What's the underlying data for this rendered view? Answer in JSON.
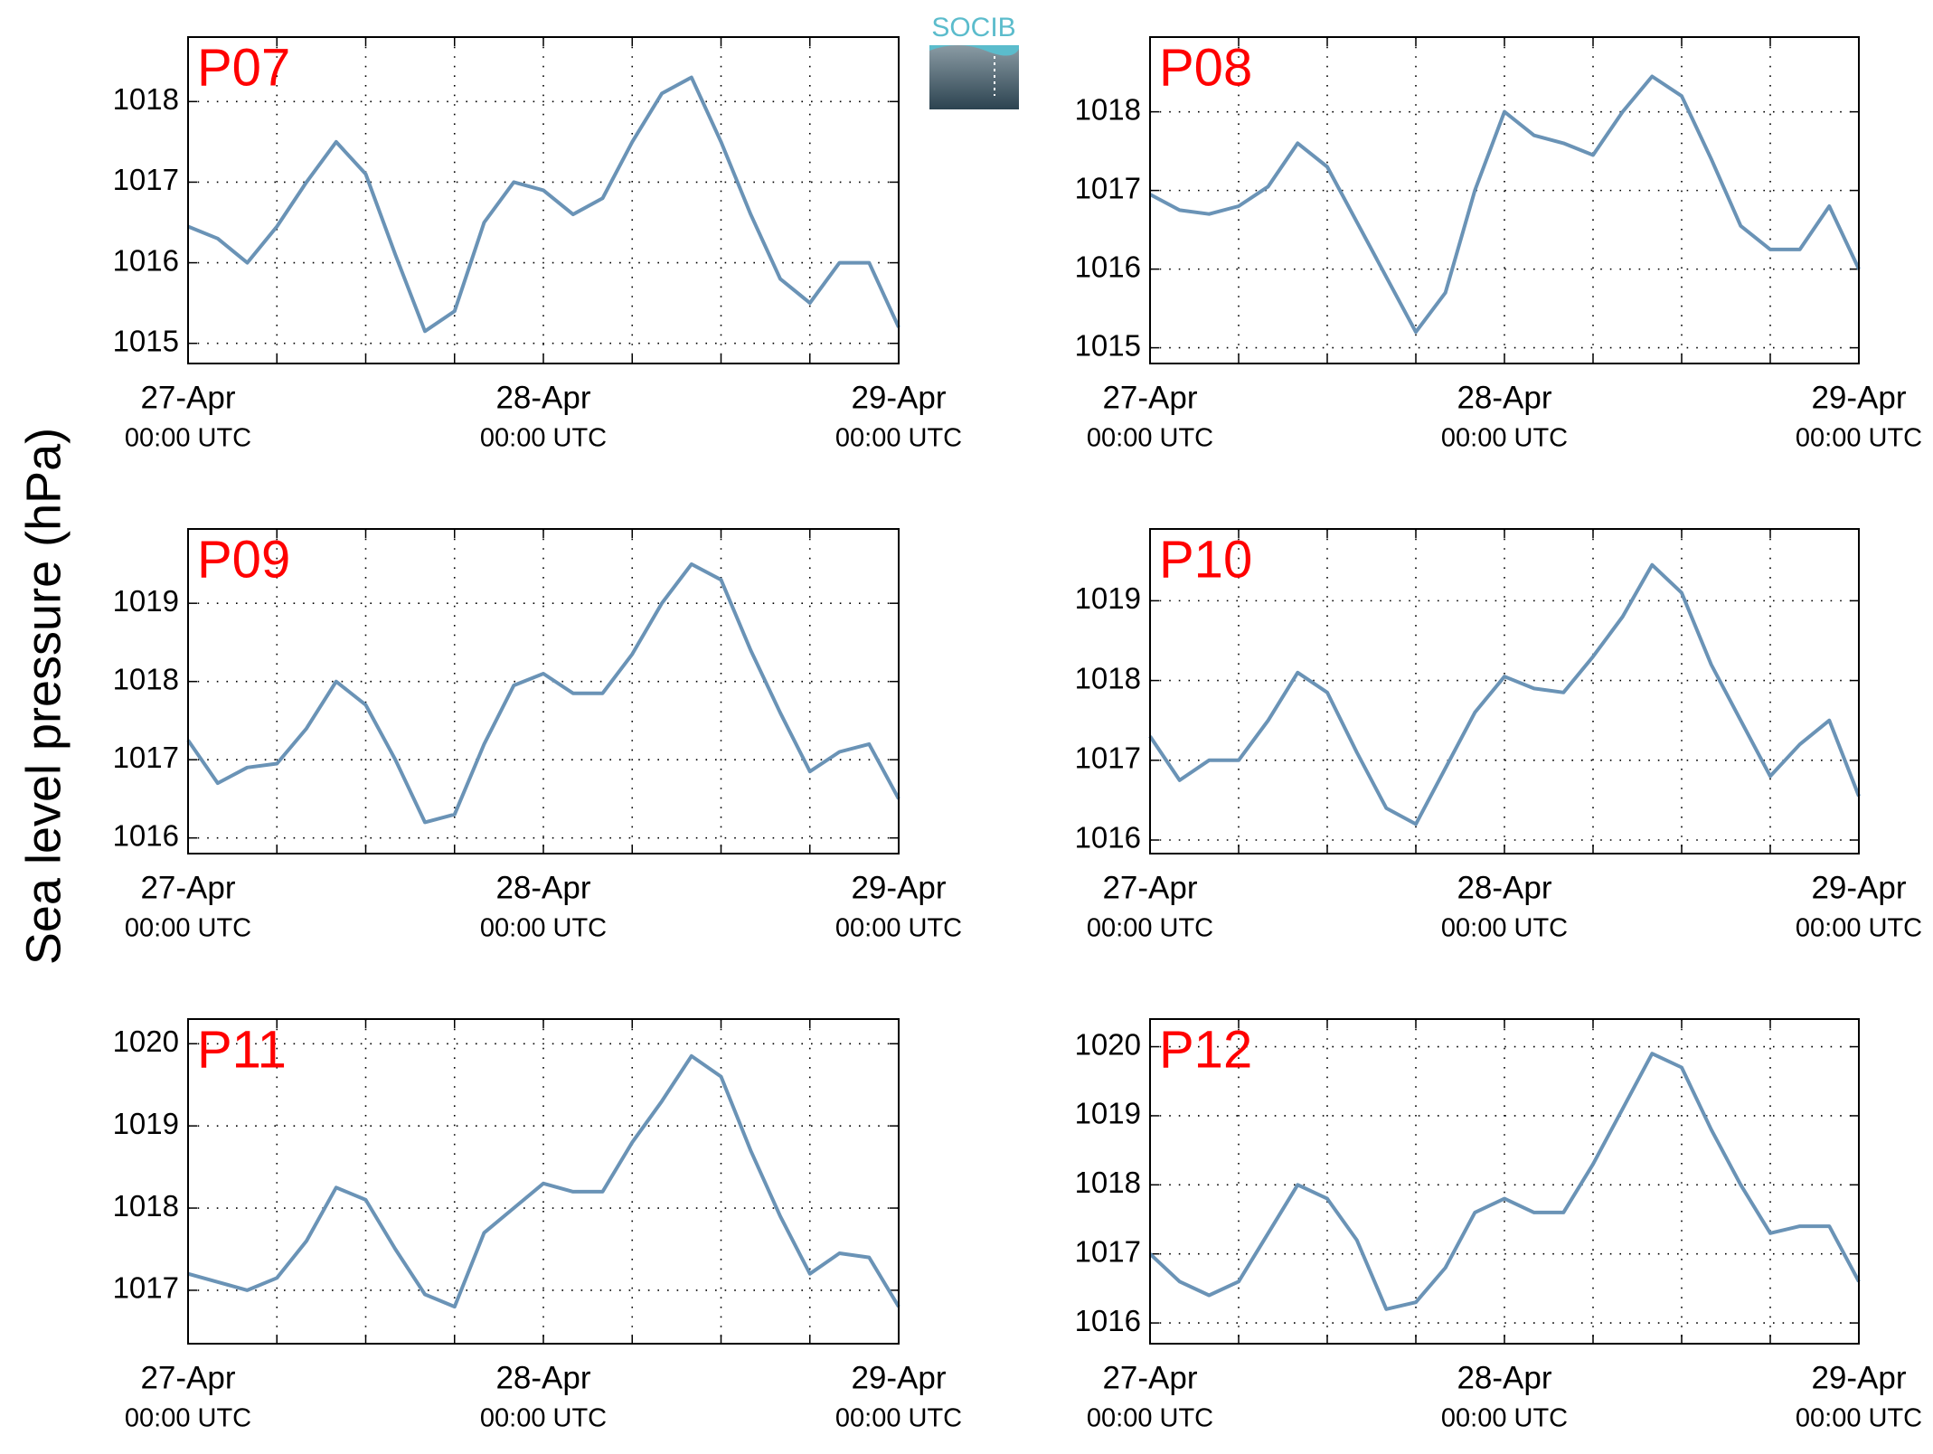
{
  "ylabel": "Sea level pressure (hPa)",
  "logo": "SOCIB",
  "chart_data": [
    {
      "type": "line",
      "title": "P07",
      "color": "#6a93b6",
      "grid": true,
      "x": [
        "27-Apr 00:00",
        "27-Apr 02:00",
        "27-Apr 04:00",
        "27-Apr 06:00",
        "27-Apr 08:00",
        "27-Apr 10:00",
        "27-Apr 12:00",
        "27-Apr 14:00",
        "27-Apr 16:00",
        "27-Apr 18:00",
        "27-Apr 20:00",
        "27-Apr 22:00",
        "28-Apr 00:00",
        "28-Apr 02:00",
        "28-Apr 04:00",
        "28-Apr 06:00",
        "28-Apr 08:00",
        "28-Apr 10:00",
        "28-Apr 12:00",
        "28-Apr 14:00",
        "28-Apr 16:00",
        "28-Apr 18:00",
        "28-Apr 20:00",
        "28-Apr 22:00",
        "29-Apr 00:00"
      ],
      "values": [
        1016.45,
        1016.3,
        1016.0,
        1016.45,
        1017.0,
        1017.5,
        1017.1,
        1016.1,
        1015.15,
        1015.4,
        1016.5,
        1017.0,
        1016.9,
        1016.6,
        1016.8,
        1017.5,
        1018.1,
        1018.3,
        1017.5,
        1016.6,
        1015.8,
        1015.5,
        1016.0,
        1016.0,
        1015.2
      ],
      "xlim": [
        "27-Apr 00:00",
        "29-Apr 00:00"
      ],
      "xticks": [
        {
          "value": "27-Apr 00:00",
          "label": [
            "27-Apr",
            "00:00 UTC"
          ]
        },
        {
          "value": "27-Apr 06:00",
          "label": null
        },
        {
          "value": "27-Apr 12:00",
          "label": null
        },
        {
          "value": "27-Apr 18:00",
          "label": null
        },
        {
          "value": "28-Apr 00:00",
          "label": [
            "28-Apr",
            "00:00 UTC"
          ]
        },
        {
          "value": "28-Apr 06:00",
          "label": null
        },
        {
          "value": "28-Apr 12:00",
          "label": null
        },
        {
          "value": "28-Apr 18:00",
          "label": null
        },
        {
          "value": "29-Apr 00:00",
          "label": [
            "29-Apr",
            "00:00 UTC"
          ]
        }
      ],
      "ylim": [
        1014.75,
        1018.8
      ],
      "yticks": [
        1015,
        1016,
        1017,
        1018
      ]
    },
    {
      "type": "line",
      "title": "P08",
      "color": "#6a93b6",
      "grid": true,
      "x": [
        "27-Apr 00:00",
        "27-Apr 02:00",
        "27-Apr 04:00",
        "27-Apr 06:00",
        "27-Apr 08:00",
        "27-Apr 10:00",
        "27-Apr 12:00",
        "27-Apr 14:00",
        "27-Apr 16:00",
        "27-Apr 18:00",
        "27-Apr 20:00",
        "27-Apr 22:00",
        "28-Apr 00:00",
        "28-Apr 02:00",
        "28-Apr 04:00",
        "28-Apr 06:00",
        "28-Apr 08:00",
        "28-Apr 10:00",
        "28-Apr 12:00",
        "28-Apr 14:00",
        "28-Apr 16:00",
        "28-Apr 18:00",
        "28-Apr 20:00",
        "28-Apr 22:00",
        "29-Apr 00:00"
      ],
      "values": [
        1016.95,
        1016.75,
        1016.7,
        1016.8,
        1017.05,
        1017.6,
        1017.3,
        1016.6,
        1015.9,
        1015.2,
        1015.7,
        1017.0,
        1018.0,
        1017.7,
        1017.6,
        1017.45,
        1018.0,
        1018.45,
        1018.2,
        1017.4,
        1016.55,
        1016.25,
        1016.25,
        1016.8,
        1016.0
      ],
      "xlim": [
        "27-Apr 00:00",
        "29-Apr 00:00"
      ],
      "xticks": [
        {
          "value": "27-Apr 00:00",
          "label": [
            "27-Apr",
            "00:00 UTC"
          ]
        },
        {
          "value": "27-Apr 06:00",
          "label": null
        },
        {
          "value": "27-Apr 12:00",
          "label": null
        },
        {
          "value": "27-Apr 18:00",
          "label": null
        },
        {
          "value": "28-Apr 00:00",
          "label": [
            "28-Apr",
            "00:00 UTC"
          ]
        },
        {
          "value": "28-Apr 06:00",
          "label": null
        },
        {
          "value": "28-Apr 12:00",
          "label": null
        },
        {
          "value": "28-Apr 18:00",
          "label": null
        },
        {
          "value": "29-Apr 00:00",
          "label": [
            "29-Apr",
            "00:00 UTC"
          ]
        }
      ],
      "ylim": [
        1014.8,
        1018.95
      ],
      "yticks": [
        1015,
        1016,
        1017,
        1018
      ]
    },
    {
      "type": "line",
      "title": "P09",
      "color": "#6a93b6",
      "grid": true,
      "x": [
        "27-Apr 00:00",
        "27-Apr 02:00",
        "27-Apr 04:00",
        "27-Apr 06:00",
        "27-Apr 08:00",
        "27-Apr 10:00",
        "27-Apr 12:00",
        "27-Apr 14:00",
        "27-Apr 16:00",
        "27-Apr 18:00",
        "27-Apr 20:00",
        "27-Apr 22:00",
        "28-Apr 00:00",
        "28-Apr 02:00",
        "28-Apr 04:00",
        "28-Apr 06:00",
        "28-Apr 08:00",
        "28-Apr 10:00",
        "28-Apr 12:00",
        "28-Apr 14:00",
        "28-Apr 16:00",
        "28-Apr 18:00",
        "28-Apr 20:00",
        "28-Apr 22:00",
        "29-Apr 00:00"
      ],
      "values": [
        1017.25,
        1016.7,
        1016.9,
        1016.95,
        1017.4,
        1018.0,
        1017.7,
        1017.0,
        1016.2,
        1016.3,
        1017.2,
        1017.95,
        1018.1,
        1017.85,
        1017.85,
        1018.35,
        1019.0,
        1019.5,
        1019.3,
        1018.4,
        1017.6,
        1016.85,
        1017.1,
        1017.2,
        1016.5
      ],
      "xlim": [
        "27-Apr 00:00",
        "29-Apr 00:00"
      ],
      "xticks": [
        {
          "value": "27-Apr 00:00",
          "label": [
            "27-Apr",
            "00:00 UTC"
          ]
        },
        {
          "value": "27-Apr 06:00",
          "label": null
        },
        {
          "value": "27-Apr 12:00",
          "label": null
        },
        {
          "value": "27-Apr 18:00",
          "label": null
        },
        {
          "value": "28-Apr 00:00",
          "label": [
            "28-Apr",
            "00:00 UTC"
          ]
        },
        {
          "value": "28-Apr 06:00",
          "label": null
        },
        {
          "value": "28-Apr 12:00",
          "label": null
        },
        {
          "value": "28-Apr 18:00",
          "label": null
        },
        {
          "value": "29-Apr 00:00",
          "label": [
            "29-Apr",
            "00:00 UTC"
          ]
        }
      ],
      "ylim": [
        1015.8,
        1019.95
      ],
      "yticks": [
        1016,
        1017,
        1018,
        1019
      ]
    },
    {
      "type": "line",
      "title": "P10",
      "color": "#6a93b6",
      "grid": true,
      "x": [
        "27-Apr 00:00",
        "27-Apr 02:00",
        "27-Apr 04:00",
        "27-Apr 06:00",
        "27-Apr 08:00",
        "27-Apr 10:00",
        "27-Apr 12:00",
        "27-Apr 14:00",
        "27-Apr 16:00",
        "27-Apr 18:00",
        "27-Apr 20:00",
        "27-Apr 22:00",
        "28-Apr 00:00",
        "28-Apr 02:00",
        "28-Apr 04:00",
        "28-Apr 06:00",
        "28-Apr 08:00",
        "28-Apr 10:00",
        "28-Apr 12:00",
        "28-Apr 14:00",
        "28-Apr 16:00",
        "28-Apr 18:00",
        "28-Apr 20:00",
        "28-Apr 22:00",
        "29-Apr 00:00"
      ],
      "values": [
        1017.3,
        1016.75,
        1017.0,
        1017.0,
        1017.5,
        1018.1,
        1017.85,
        1017.1,
        1016.4,
        1016.2,
        1016.9,
        1017.6,
        1018.05,
        1017.9,
        1017.85,
        1018.3,
        1018.8,
        1019.45,
        1019.1,
        1018.2,
        1017.5,
        1016.8,
        1017.2,
        1017.5,
        1016.55
      ],
      "xlim": [
        "27-Apr 00:00",
        "29-Apr 00:00"
      ],
      "xticks": [
        {
          "value": "27-Apr 00:00",
          "label": [
            "27-Apr",
            "00:00 UTC"
          ]
        },
        {
          "value": "27-Apr 06:00",
          "label": null
        },
        {
          "value": "27-Apr 12:00",
          "label": null
        },
        {
          "value": "27-Apr 18:00",
          "label": null
        },
        {
          "value": "28-Apr 00:00",
          "label": [
            "28-Apr",
            "00:00 UTC"
          ]
        },
        {
          "value": "28-Apr 06:00",
          "label": null
        },
        {
          "value": "28-Apr 12:00",
          "label": null
        },
        {
          "value": "28-Apr 18:00",
          "label": null
        },
        {
          "value": "29-Apr 00:00",
          "label": [
            "29-Apr",
            "00:00 UTC"
          ]
        }
      ],
      "ylim": [
        1015.83,
        1019.9
      ],
      "yticks": [
        1016,
        1017,
        1018,
        1019
      ]
    },
    {
      "type": "line",
      "title": "P11",
      "color": "#6a93b6",
      "grid": true,
      "x": [
        "27-Apr 00:00",
        "27-Apr 02:00",
        "27-Apr 04:00",
        "27-Apr 06:00",
        "27-Apr 08:00",
        "27-Apr 10:00",
        "27-Apr 12:00",
        "27-Apr 14:00",
        "27-Apr 16:00",
        "27-Apr 18:00",
        "27-Apr 20:00",
        "27-Apr 22:00",
        "28-Apr 00:00",
        "28-Apr 02:00",
        "28-Apr 04:00",
        "28-Apr 06:00",
        "28-Apr 08:00",
        "28-Apr 10:00",
        "28-Apr 12:00",
        "28-Apr 14:00",
        "28-Apr 16:00",
        "28-Apr 18:00",
        "28-Apr 20:00",
        "28-Apr 22:00",
        "29-Apr 00:00"
      ],
      "values": [
        1017.2,
        1017.1,
        1017.0,
        1017.15,
        1017.6,
        1018.25,
        1018.1,
        1017.5,
        1016.95,
        1016.8,
        1017.7,
        1018.0,
        1018.3,
        1018.2,
        1018.2,
        1018.8,
        1019.3,
        1019.85,
        1019.6,
        1018.7,
        1017.9,
        1017.2,
        1017.45,
        1017.4,
        1016.8
      ],
      "xlim": [
        "27-Apr 00:00",
        "29-Apr 00:00"
      ],
      "xticks": [
        {
          "value": "27-Apr 00:00",
          "label": [
            "27-Apr",
            "00:00 UTC"
          ]
        },
        {
          "value": "27-Apr 06:00",
          "label": null
        },
        {
          "value": "27-Apr 12:00",
          "label": null
        },
        {
          "value": "27-Apr 18:00",
          "label": null
        },
        {
          "value": "28-Apr 00:00",
          "label": [
            "28-Apr",
            "00:00 UTC"
          ]
        },
        {
          "value": "28-Apr 06:00",
          "label": null
        },
        {
          "value": "28-Apr 12:00",
          "label": null
        },
        {
          "value": "28-Apr 18:00",
          "label": null
        },
        {
          "value": "29-Apr 00:00",
          "label": [
            "29-Apr",
            "00:00 UTC"
          ]
        }
      ],
      "ylim": [
        1016.35,
        1020.3
      ],
      "yticks": [
        1017,
        1018,
        1019,
        1020
      ]
    },
    {
      "type": "line",
      "title": "P12",
      "color": "#6a93b6",
      "grid": true,
      "x": [
        "27-Apr 00:00",
        "27-Apr 02:00",
        "27-Apr 04:00",
        "27-Apr 06:00",
        "27-Apr 08:00",
        "27-Apr 10:00",
        "27-Apr 12:00",
        "27-Apr 14:00",
        "27-Apr 16:00",
        "27-Apr 18:00",
        "27-Apr 20:00",
        "27-Apr 22:00",
        "28-Apr 00:00",
        "28-Apr 02:00",
        "28-Apr 04:00",
        "28-Apr 06:00",
        "28-Apr 08:00",
        "28-Apr 10:00",
        "28-Apr 12:00",
        "28-Apr 14:00",
        "28-Apr 16:00",
        "28-Apr 18:00",
        "28-Apr 20:00",
        "28-Apr 22:00",
        "29-Apr 00:00"
      ],
      "values": [
        1017.0,
        1016.6,
        1016.4,
        1016.6,
        1017.3,
        1018.0,
        1017.8,
        1017.2,
        1016.2,
        1016.3,
        1016.8,
        1017.6,
        1017.8,
        1017.6,
        1017.6,
        1018.3,
        1019.1,
        1019.9,
        1019.7,
        1018.8,
        1018.0,
        1017.3,
        1017.4,
        1017.4,
        1016.6
      ],
      "xlim": [
        "27-Apr 00:00",
        "29-Apr 00:00"
      ],
      "xticks": [
        {
          "value": "27-Apr 00:00",
          "label": [
            "27-Apr",
            "00:00 UTC"
          ]
        },
        {
          "value": "27-Apr 06:00",
          "label": null
        },
        {
          "value": "27-Apr 12:00",
          "label": null
        },
        {
          "value": "27-Apr 18:00",
          "label": null
        },
        {
          "value": "28-Apr 00:00",
          "label": [
            "28-Apr",
            "00:00 UTC"
          ]
        },
        {
          "value": "28-Apr 06:00",
          "label": null
        },
        {
          "value": "28-Apr 12:00",
          "label": null
        },
        {
          "value": "28-Apr 18:00",
          "label": null
        },
        {
          "value": "29-Apr 00:00",
          "label": [
            "29-Apr",
            "00:00 UTC"
          ]
        }
      ],
      "ylim": [
        1015.7,
        1020.4
      ],
      "yticks": [
        1016,
        1017,
        1018,
        1019,
        1020
      ]
    }
  ]
}
